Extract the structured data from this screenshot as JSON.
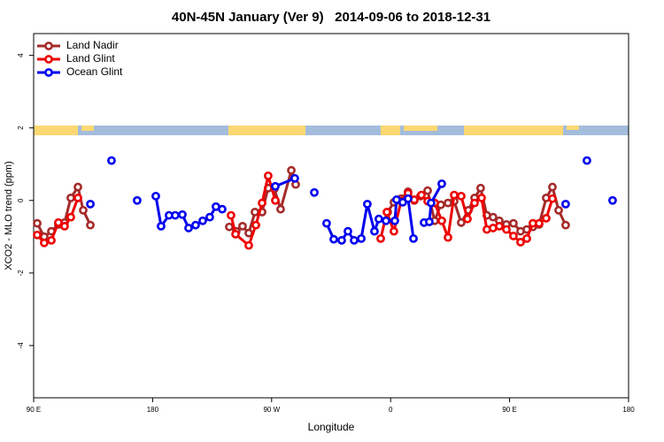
{
  "chart_data": {
    "type": "line",
    "title": "40N-45N January (Ver 9)   2014-09-06 to 2018-12-31",
    "xlabel": "Longitude",
    "ylabel": "XCO2 - MLO trend (ppm)",
    "xlim": [
      90,
      540
    ],
    "xticks": [
      {
        "value": 90,
        "label": "90 E"
      },
      180,
      {
        "value": 270,
        "label": "90 W"
      },
      {
        "value": 360,
        "label": "0"
      },
      {
        "value": 450,
        "label": "90 E"
      },
      {
        "value": 540,
        "label": "180"
      }
    ],
    "ylim": [
      -5.44,
      4.6
    ],
    "yticks": [
      -4,
      -2,
      0,
      2,
      4
    ],
    "legend": "top-left",
    "series": [
      {
        "name": "Land Nadir",
        "color": "#a52a2a",
        "x": [
          92.7,
          98.0,
          103.4,
          108.7,
          113.4,
          118.1,
          123.5,
          127.5,
          132.9,
          null,
          238.0,
          243.3,
          248.0,
          252.7,
          257.4,
          262.8,
          267.4,
          272.1,
          276.8,
          284.9,
          288.2,
          null,
          357.8,
          362.5,
          367.9,
          373.2,
          377.9,
          382.6,
          388.0,
          393.3,
          398.0,
          403.4,
          408.1,
          413.4,
          418.8,
          423.5,
          428.1,
          432.8,
          437.5,
          442.2,
          447.6,
          452.9,
          458.3,
          463.0,
          467.6,
          472.3,
          477.7,
          482.4,
          487.1,
          492.4
        ],
        "values": [
          -0.63,
          -1.0,
          -0.85,
          -0.66,
          -0.61,
          0.07,
          0.37,
          -0.27,
          -0.68,
          null,
          -0.73,
          -0.85,
          -0.71,
          -0.9,
          -0.32,
          -0.32,
          0.34,
          0.32,
          -0.24,
          0.83,
          0.44,
          null,
          -0.32,
          -0.05,
          0.05,
          0.24,
          0,
          0.12,
          0.27,
          -0.56,
          -0.12,
          -0.07,
          -0.02,
          -0.61,
          -0.27,
          0.07,
          0.34,
          -0.41,
          -0.46,
          -0.56,
          -0.66,
          -0.63,
          -0.85,
          -0.8,
          -0.73,
          -0.66,
          0.07,
          0.37,
          -0.27,
          -0.68
        ]
      },
      {
        "name": "Land Glint",
        "color": "#ee0000",
        "x": [
          92.7,
          98.0,
          103.4,
          108.7,
          113.4,
          118.1,
          123.5,
          null,
          239.3,
          242.7,
          252.7,
          258.1,
          262.8,
          267.4,
          272.8,
          null,
          352.5,
          357.2,
          362.5,
          367.9,
          373.2,
          377.9,
          383.3,
          388.0,
          393.3,
          398.7,
          403.4,
          408.1,
          413.4,
          418.1,
          423.5,
          428.8,
          432.8,
          437.5,
          442.2,
          447.6,
          452.9,
          458.3,
          463.0,
          467.6,
          472.3,
          477.7,
          482.4
        ],
        "values": [
          -0.95,
          -1.17,
          -1.1,
          -0.61,
          -0.71,
          -0.46,
          0.07,
          null,
          -0.41,
          -0.93,
          -1.24,
          -0.68,
          -0.07,
          0.68,
          0,
          null,
          -1.05,
          -0.32,
          -0.85,
          -0.02,
          0.2,
          0.02,
          0.15,
          -0.02,
          -0.07,
          -0.56,
          -1.02,
          0.15,
          0.12,
          -0.51,
          -0.07,
          0.07,
          -0.8,
          -0.76,
          -0.71,
          -0.8,
          -0.98,
          -1.15,
          -1.05,
          -0.63,
          -0.63,
          -0.49,
          0.05
        ]
      },
      {
        "name": "Ocean Glint",
        "color": "#0000ee",
        "x": [
          132.9,
          null,
          148.9,
          null,
          168.3,
          null,
          182.4,
          186.4,
          192.4,
          197.1,
          202.5,
          207.2,
          212.5,
          217.9,
          223.2,
          227.9,
          232.6,
          null,
          272.8,
          287.5,
          null,
          302.3,
          null,
          311.6,
          317.0,
          323.0,
          327.7,
          332.4,
          337.8,
          342.4,
          347.8,
          351.1,
          356.5,
          363.2,
          364.5,
          369.2,
          373.2,
          377.3,
          null,
          385.3,
          389.3,
          390.6,
          398.7,
          null,
          492.4,
          null,
          508.5,
          null,
          527.9
        ],
        "values": [
          -0.1,
          null,
          1.1,
          null,
          0,
          null,
          0.12,
          -0.71,
          -0.41,
          -0.41,
          -0.39,
          -0.76,
          -0.68,
          -0.56,
          -0.46,
          -0.17,
          -0.24,
          null,
          0.39,
          0.61,
          null,
          0.22,
          null,
          -0.63,
          -1.07,
          -1.1,
          -0.85,
          -1.1,
          -1.05,
          -0.1,
          -0.85,
          -0.51,
          -0.56,
          -0.56,
          0.02,
          -0.05,
          0.05,
          -1.05,
          null,
          -0.61,
          -0.59,
          -0.07,
          0.46,
          null,
          -0.1,
          null,
          1.1,
          null,
          0
        ]
      }
    ]
  }
}
